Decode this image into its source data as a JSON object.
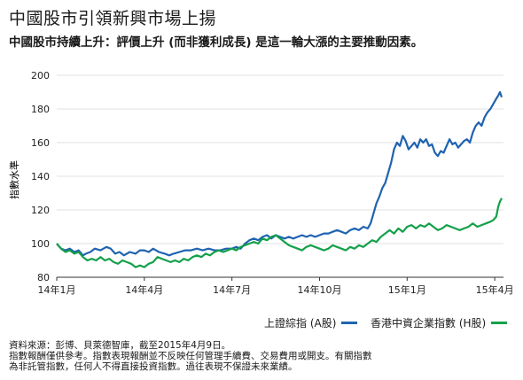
{
  "title": "中國股市引領新興市場上揚",
  "subtitle": "中國股市持續上升：評價上升 (而非獲利成長) 是這一輪大漲的主要推動因素。",
  "chart_data": {
    "type": "line",
    "ylabel": "指數水準",
    "xlabel": "",
    "ylim": [
      80,
      200
    ],
    "yticks": [
      80,
      100,
      120,
      140,
      160,
      180,
      200
    ],
    "xlim": [
      0,
      15.3
    ],
    "xticks": [
      {
        "x": 0,
        "label": "14年1月"
      },
      {
        "x": 3,
        "label": "14年4月"
      },
      {
        "x": 6,
        "label": "14年7月"
      },
      {
        "x": 9,
        "label": "14年10月"
      },
      {
        "x": 12,
        "label": "15年1月"
      },
      {
        "x": 15,
        "label": "15年4月"
      }
    ],
    "grid": "horizontal",
    "legend_position": "bottom-right",
    "series": [
      {
        "name": "上證綜指 (A股)",
        "color": "#1f63b0",
        "points": [
          [
            0.0,
            100
          ],
          [
            0.15,
            97
          ],
          [
            0.3,
            96
          ],
          [
            0.45,
            97
          ],
          [
            0.6,
            95
          ],
          [
            0.75,
            96
          ],
          [
            0.9,
            93
          ],
          [
            1.0,
            94
          ],
          [
            1.15,
            95
          ],
          [
            1.3,
            97
          ],
          [
            1.5,
            96
          ],
          [
            1.7,
            98
          ],
          [
            1.85,
            97
          ],
          [
            2.0,
            94
          ],
          [
            2.15,
            95
          ],
          [
            2.3,
            93
          ],
          [
            2.5,
            95
          ],
          [
            2.7,
            94
          ],
          [
            2.85,
            96
          ],
          [
            3.0,
            96
          ],
          [
            3.15,
            95
          ],
          [
            3.3,
            97
          ],
          [
            3.5,
            95
          ],
          [
            3.7,
            94
          ],
          [
            3.85,
            93
          ],
          [
            4.0,
            94
          ],
          [
            4.2,
            95
          ],
          [
            4.4,
            96
          ],
          [
            4.6,
            96
          ],
          [
            4.8,
            97
          ],
          [
            5.0,
            96
          ],
          [
            5.2,
            97
          ],
          [
            5.4,
            96
          ],
          [
            5.6,
            96
          ],
          [
            5.8,
            97
          ],
          [
            6.0,
            97
          ],
          [
            6.15,
            98
          ],
          [
            6.3,
            97
          ],
          [
            6.45,
            100
          ],
          [
            6.6,
            102
          ],
          [
            6.75,
            103
          ],
          [
            6.9,
            102
          ],
          [
            7.05,
            104
          ],
          [
            7.2,
            105
          ],
          [
            7.35,
            103
          ],
          [
            7.5,
            105
          ],
          [
            7.65,
            104
          ],
          [
            7.8,
            103
          ],
          [
            7.95,
            104
          ],
          [
            8.1,
            103
          ],
          [
            8.25,
            104
          ],
          [
            8.4,
            105
          ],
          [
            8.55,
            104
          ],
          [
            8.7,
            105
          ],
          [
            8.85,
            104
          ],
          [
            9.0,
            105
          ],
          [
            9.15,
            106
          ],
          [
            9.3,
            106
          ],
          [
            9.45,
            107
          ],
          [
            9.6,
            108
          ],
          [
            9.75,
            107
          ],
          [
            9.9,
            106
          ],
          [
            10.05,
            108
          ],
          [
            10.2,
            109
          ],
          [
            10.35,
            108
          ],
          [
            10.5,
            110
          ],
          [
            10.65,
            109
          ],
          [
            10.75,
            112
          ],
          [
            10.85,
            118
          ],
          [
            10.95,
            124
          ],
          [
            11.05,
            128
          ],
          [
            11.15,
            133
          ],
          [
            11.25,
            136
          ],
          [
            11.35,
            142
          ],
          [
            11.45,
            148
          ],
          [
            11.55,
            156
          ],
          [
            11.65,
            160
          ],
          [
            11.75,
            158
          ],
          [
            11.85,
            164
          ],
          [
            11.95,
            161
          ],
          [
            12.05,
            156
          ],
          [
            12.15,
            158
          ],
          [
            12.25,
            160
          ],
          [
            12.35,
            157
          ],
          [
            12.45,
            162
          ],
          [
            12.55,
            160
          ],
          [
            12.65,
            162
          ],
          [
            12.75,
            158
          ],
          [
            12.85,
            159
          ],
          [
            12.95,
            154
          ],
          [
            13.05,
            152
          ],
          [
            13.15,
            155
          ],
          [
            13.25,
            154
          ],
          [
            13.35,
            158
          ],
          [
            13.45,
            162
          ],
          [
            13.55,
            159
          ],
          [
            13.65,
            160
          ],
          [
            13.75,
            157
          ],
          [
            13.85,
            159
          ],
          [
            13.95,
            161
          ],
          [
            14.05,
            162
          ],
          [
            14.15,
            160
          ],
          [
            14.25,
            166
          ],
          [
            14.35,
            170
          ],
          [
            14.45,
            172
          ],
          [
            14.55,
            170
          ],
          [
            14.65,
            175
          ],
          [
            14.75,
            178
          ],
          [
            14.85,
            180
          ],
          [
            14.95,
            183
          ],
          [
            15.05,
            186
          ],
          [
            15.12,
            188
          ],
          [
            15.18,
            190
          ],
          [
            15.24,
            187
          ]
        ]
      },
      {
        "name": "香港中資企業指數 (H股)",
        "color": "#14a04a",
        "points": [
          [
            0.0,
            100
          ],
          [
            0.15,
            97
          ],
          [
            0.3,
            95
          ],
          [
            0.45,
            96
          ],
          [
            0.6,
            94
          ],
          [
            0.75,
            95
          ],
          [
            0.9,
            92
          ],
          [
            1.05,
            90
          ],
          [
            1.2,
            91
          ],
          [
            1.35,
            90
          ],
          [
            1.5,
            92
          ],
          [
            1.65,
            90
          ],
          [
            1.8,
            91
          ],
          [
            1.95,
            89
          ],
          [
            2.1,
            88
          ],
          [
            2.25,
            90
          ],
          [
            2.4,
            89
          ],
          [
            2.55,
            88
          ],
          [
            2.7,
            86
          ],
          [
            2.85,
            87
          ],
          [
            3.0,
            86
          ],
          [
            3.15,
            88
          ],
          [
            3.3,
            89
          ],
          [
            3.45,
            92
          ],
          [
            3.6,
            91
          ],
          [
            3.75,
            90
          ],
          [
            3.9,
            89
          ],
          [
            4.05,
            90
          ],
          [
            4.2,
            89
          ],
          [
            4.35,
            91
          ],
          [
            4.5,
            90
          ],
          [
            4.65,
            92
          ],
          [
            4.8,
            93
          ],
          [
            4.95,
            92
          ],
          [
            5.1,
            94
          ],
          [
            5.25,
            93
          ],
          [
            5.4,
            95
          ],
          [
            5.55,
            96
          ],
          [
            5.7,
            95
          ],
          [
            5.85,
            96
          ],
          [
            6.0,
            97
          ],
          [
            6.15,
            96
          ],
          [
            6.3,
            98
          ],
          [
            6.45,
            99
          ],
          [
            6.6,
            100
          ],
          [
            6.75,
            101
          ],
          [
            6.9,
            100
          ],
          [
            7.05,
            103
          ],
          [
            7.2,
            102
          ],
          [
            7.35,
            104
          ],
          [
            7.5,
            105
          ],
          [
            7.65,
            103
          ],
          [
            7.8,
            101
          ],
          [
            7.95,
            99
          ],
          [
            8.1,
            98
          ],
          [
            8.25,
            97
          ],
          [
            8.4,
            96
          ],
          [
            8.55,
            98
          ],
          [
            8.7,
            99
          ],
          [
            8.85,
            98
          ],
          [
            9.0,
            97
          ],
          [
            9.15,
            96
          ],
          [
            9.3,
            97
          ],
          [
            9.45,
            99
          ],
          [
            9.6,
            98
          ],
          [
            9.75,
            97
          ],
          [
            9.9,
            96
          ],
          [
            10.05,
            98
          ],
          [
            10.2,
            97
          ],
          [
            10.35,
            99
          ],
          [
            10.5,
            98
          ],
          [
            10.65,
            100
          ],
          [
            10.8,
            102
          ],
          [
            10.95,
            101
          ],
          [
            11.1,
            104
          ],
          [
            11.25,
            106
          ],
          [
            11.4,
            108
          ],
          [
            11.55,
            106
          ],
          [
            11.7,
            109
          ],
          [
            11.85,
            107
          ],
          [
            12.0,
            110
          ],
          [
            12.15,
            111
          ],
          [
            12.3,
            109
          ],
          [
            12.45,
            111
          ],
          [
            12.6,
            110
          ],
          [
            12.75,
            112
          ],
          [
            12.9,
            110
          ],
          [
            13.05,
            108
          ],
          [
            13.2,
            109
          ],
          [
            13.35,
            111
          ],
          [
            13.5,
            110
          ],
          [
            13.65,
            109
          ],
          [
            13.8,
            108
          ],
          [
            13.95,
            109
          ],
          [
            14.1,
            110
          ],
          [
            14.25,
            112
          ],
          [
            14.4,
            110
          ],
          [
            14.55,
            111
          ],
          [
            14.7,
            112
          ],
          [
            14.85,
            113
          ],
          [
            14.95,
            114
          ],
          [
            15.05,
            116
          ],
          [
            15.12,
            122
          ],
          [
            15.18,
            125
          ],
          [
            15.24,
            127
          ]
        ]
      }
    ]
  },
  "legend": [
    {
      "label": "上證綜指 (A股)",
      "color": "#1f63b0"
    },
    {
      "label": "香港中資企業指數 (H股)",
      "color": "#14a04a"
    }
  ],
  "footnotes": [
    "資料來源：彭博、貝萊德智庫，截至2015年4月9日。",
    "指數報酬僅供參考。指數表現報酬並不反映任何管理手續費、交易費用或開支。有關指數",
    "為非託管指數，任何人不得直接投資指數。過往表現不保證未來業績。"
  ]
}
